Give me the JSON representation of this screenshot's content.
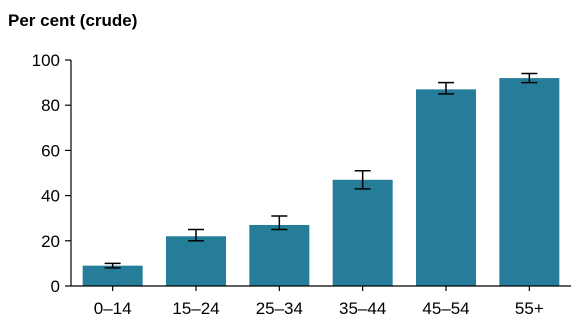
{
  "chart_data": {
    "type": "bar",
    "title": "Per cent (crude)",
    "xlabel": "",
    "ylabel": "",
    "categories": [
      "0–14",
      "15–24",
      "25–34",
      "35–44",
      "45–54",
      "55+"
    ],
    "values": [
      9,
      22,
      27,
      47,
      87,
      92
    ],
    "error_low": [
      8,
      20,
      25,
      43,
      85,
      90
    ],
    "error_high": [
      10,
      25,
      31,
      51,
      90,
      94
    ],
    "ylim": [
      0,
      100
    ],
    "yticks": [
      0,
      20,
      40,
      60,
      80,
      100
    ],
    "grid": false,
    "legend": "none",
    "bar_color": "#267d99"
  }
}
